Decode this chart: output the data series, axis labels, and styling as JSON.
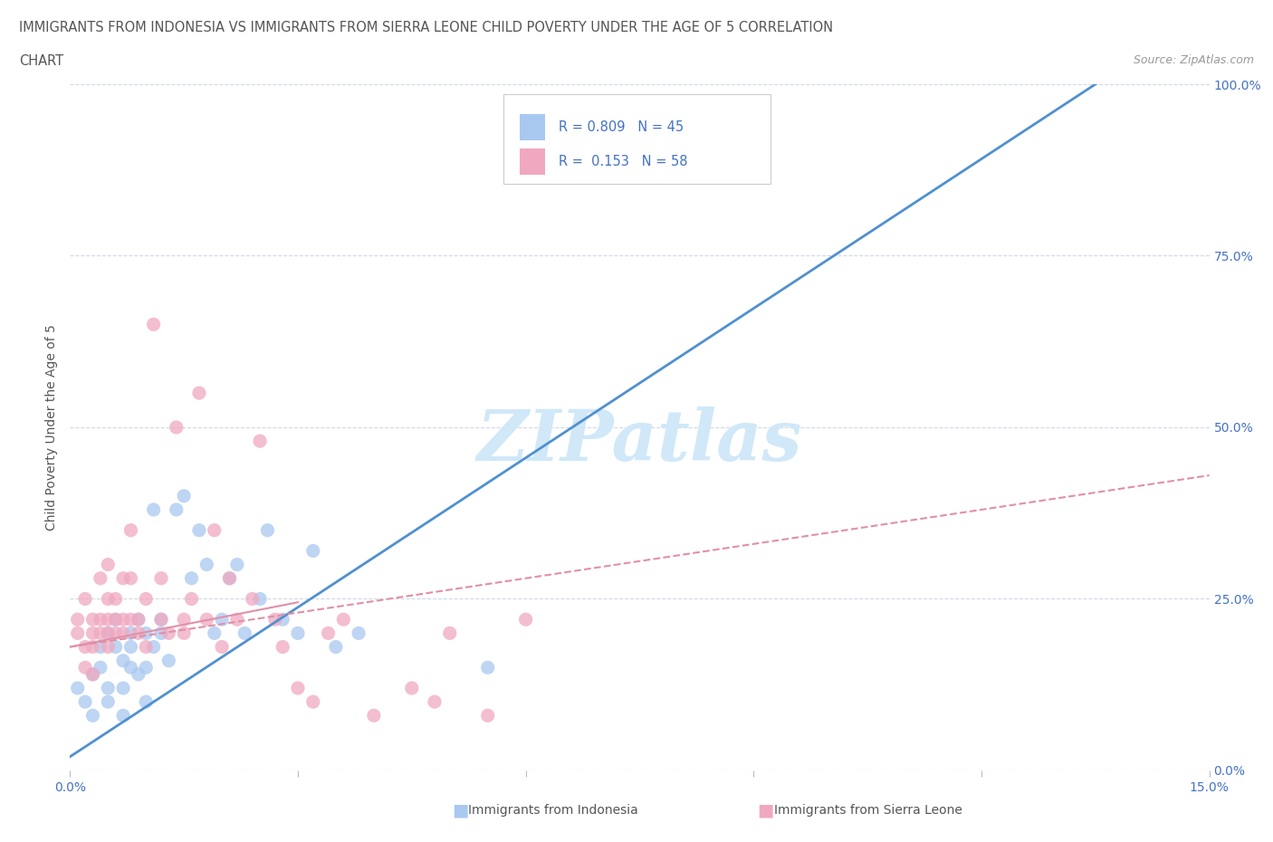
{
  "title_line1": "IMMIGRANTS FROM INDONESIA VS IMMIGRANTS FROM SIERRA LEONE CHILD POVERTY UNDER THE AGE OF 5 CORRELATION",
  "title_line2": "CHART",
  "source": "Source: ZipAtlas.com",
  "ylabel": "Child Poverty Under the Age of 5",
  "xlim": [
    0.0,
    15.0
  ],
  "ylim": [
    0.0,
    100.0
  ],
  "xticks": [
    0.0,
    3.0,
    6.0,
    9.0,
    12.0,
    15.0
  ],
  "ytick_labels": [
    "0.0%",
    "25.0%",
    "50.0%",
    "75.0%",
    "100.0%"
  ],
  "yticks": [
    0,
    25,
    50,
    75,
    100
  ],
  "indonesia_color": "#a8c8f0",
  "sierra_leone_color": "#f0a8c0",
  "indonesia_trend_color": "#5090d0",
  "sierra_leone_trend_color": "#e090a8",
  "indonesia_scatter_x": [
    0.1,
    0.2,
    0.3,
    0.3,
    0.4,
    0.4,
    0.5,
    0.5,
    0.5,
    0.6,
    0.6,
    0.7,
    0.7,
    0.7,
    0.8,
    0.8,
    0.8,
    0.9,
    0.9,
    1.0,
    1.0,
    1.0,
    1.1,
    1.1,
    1.2,
    1.2,
    1.3,
    1.4,
    1.5,
    1.6,
    1.7,
    1.8,
    1.9,
    2.0,
    2.1,
    2.2,
    2.3,
    2.5,
    2.6,
    2.8,
    3.0,
    3.2,
    3.5,
    3.8,
    5.5
  ],
  "indonesia_scatter_y": [
    12,
    10,
    8,
    14,
    15,
    18,
    12,
    10,
    20,
    18,
    22,
    16,
    12,
    8,
    20,
    15,
    18,
    22,
    14,
    20,
    15,
    10,
    18,
    38,
    22,
    20,
    16,
    38,
    40,
    28,
    35,
    30,
    20,
    22,
    28,
    30,
    20,
    25,
    35,
    22,
    20,
    32,
    18,
    20,
    15
  ],
  "sierra_leone_scatter_x": [
    0.1,
    0.1,
    0.2,
    0.2,
    0.2,
    0.3,
    0.3,
    0.3,
    0.3,
    0.4,
    0.4,
    0.4,
    0.5,
    0.5,
    0.5,
    0.5,
    0.5,
    0.6,
    0.6,
    0.6,
    0.7,
    0.7,
    0.7,
    0.8,
    0.8,
    0.8,
    0.9,
    0.9,
    1.0,
    1.0,
    1.1,
    1.2,
    1.2,
    1.3,
    1.4,
    1.5,
    1.5,
    1.6,
    1.7,
    1.8,
    1.9,
    2.0,
    2.1,
    2.2,
    2.4,
    2.5,
    2.7,
    2.8,
    3.0,
    3.2,
    3.4,
    3.6,
    4.0,
    4.5,
    4.8,
    5.0,
    5.5,
    6.0
  ],
  "sierra_leone_scatter_y": [
    20,
    22,
    18,
    25,
    15,
    22,
    20,
    18,
    14,
    28,
    20,
    22,
    30,
    22,
    25,
    18,
    20,
    25,
    22,
    20,
    28,
    22,
    20,
    35,
    22,
    28,
    22,
    20,
    18,
    25,
    65,
    28,
    22,
    20,
    50,
    22,
    20,
    25,
    55,
    22,
    35,
    18,
    28,
    22,
    25,
    48,
    22,
    18,
    12,
    10,
    20,
    22,
    8,
    12,
    10,
    20,
    8,
    22
  ],
  "indonesia_trendline_x": [
    0.0,
    13.5
  ],
  "indonesia_trendline_y": [
    2.0,
    100.0
  ],
  "sierra_leone_trendline_x": [
    0.0,
    15.0
  ],
  "sierra_leone_trendline_y": [
    18.0,
    43.0
  ],
  "watermark": "ZIPatlas",
  "watermark_color": "#d0e8f8",
  "background_color": "#ffffff",
  "title_color": "#555555",
  "axis_color": "#4472c4",
  "legend_label_color": "#4472c4",
  "gridline_color": "#d0d8e8"
}
